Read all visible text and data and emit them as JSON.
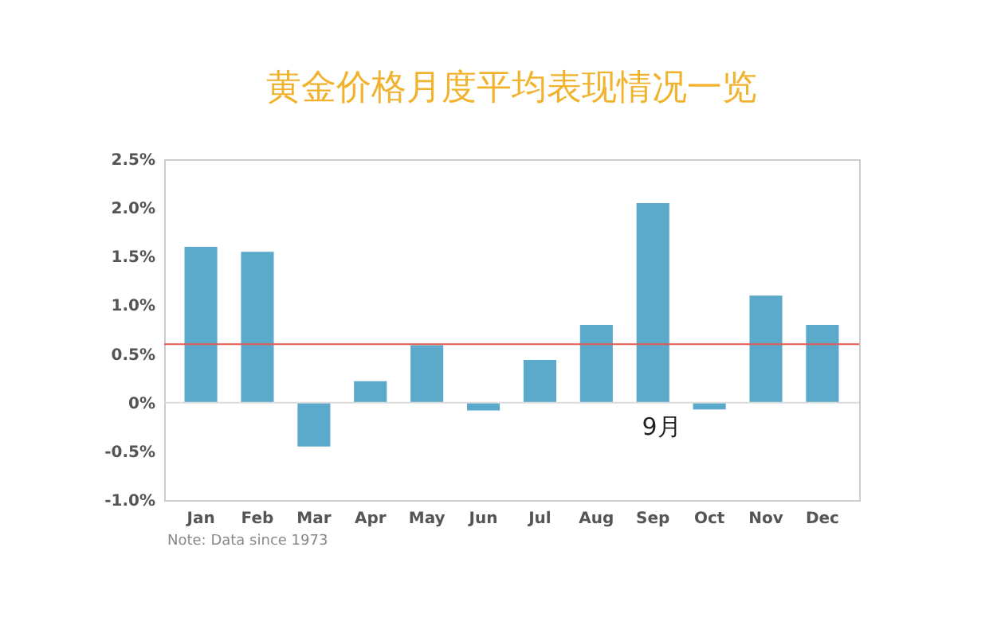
{
  "chart_data": {
    "type": "bar",
    "title": "黄金价格月度平均表现情况一览",
    "categories": [
      "Jan",
      "Feb",
      "Mar",
      "Apr",
      "May",
      "Jun",
      "Jul",
      "Aug",
      "Sep",
      "Oct",
      "Nov",
      "Dec"
    ],
    "values": [
      1.6,
      1.55,
      -0.45,
      0.22,
      0.59,
      -0.08,
      0.44,
      0.8,
      2.05,
      -0.07,
      1.1,
      0.8
    ],
    "color": "#5ba9cb",
    "ylim": [
      -1,
      2.5
    ],
    "yticks": [
      {
        "value": -1,
        "label": "-1.0%"
      },
      {
        "value": -0.5,
        "label": "-0.5%"
      },
      {
        "value": 0,
        "label": "0%"
      },
      {
        "value": 0.5,
        "label": "0.5%"
      },
      {
        "value": 1,
        "label": "1.0%"
      },
      {
        "value": 1.5,
        "label": "1.5%"
      },
      {
        "value": 2,
        "label": "2.0%"
      },
      {
        "value": 2.5,
        "label": "2.5%"
      }
    ],
    "ref_lines": [
      {
        "axis": "y",
        "value": 0,
        "color": "#dcdcdc"
      },
      {
        "axis": "y",
        "value": 0.6,
        "color": "#e25a4f"
      }
    ],
    "annotations": [
      "9月",
      "Note: Data since 1973"
    ]
  }
}
